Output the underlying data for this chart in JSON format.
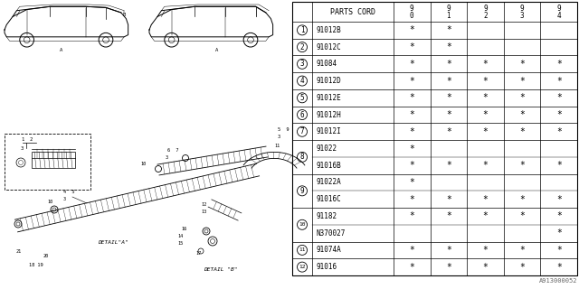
{
  "catalog_code": "A913000052",
  "bg_color": "#ffffff",
  "header_label": "PARTS CORD",
  "col_year_tops": [
    "9",
    "9",
    "9",
    "9",
    "9"
  ],
  "col_year_bots": [
    "0",
    "1",
    "2",
    "3",
    "4"
  ],
  "rows": [
    {
      "num": "1",
      "part": "91012B",
      "marks": [
        1,
        1,
        0,
        0,
        0
      ],
      "sub": false
    },
    {
      "num": "2",
      "part": "91012C",
      "marks": [
        1,
        1,
        0,
        0,
        0
      ],
      "sub": false
    },
    {
      "num": "3",
      "part": "91084",
      "marks": [
        1,
        1,
        1,
        1,
        1
      ],
      "sub": false
    },
    {
      "num": "4",
      "part": "91012D",
      "marks": [
        1,
        1,
        1,
        1,
        1
      ],
      "sub": false
    },
    {
      "num": "5",
      "part": "91012E",
      "marks": [
        1,
        1,
        1,
        1,
        1
      ],
      "sub": false
    },
    {
      "num": "6",
      "part": "91012H",
      "marks": [
        1,
        1,
        1,
        1,
        1
      ],
      "sub": false
    },
    {
      "num": "7",
      "part": "91012I",
      "marks": [
        1,
        1,
        1,
        1,
        1
      ],
      "sub": false
    },
    {
      "num": "8",
      "part": "91022",
      "marks": [
        1,
        0,
        0,
        0,
        0
      ],
      "sub": false
    },
    {
      "num": "8",
      "part": "91016B",
      "marks": [
        1,
        1,
        1,
        1,
        1
      ],
      "sub": true
    },
    {
      "num": "9",
      "part": "91022A",
      "marks": [
        1,
        0,
        0,
        0,
        0
      ],
      "sub": false
    },
    {
      "num": "9",
      "part": "91016C",
      "marks": [
        1,
        1,
        1,
        1,
        1
      ],
      "sub": true
    },
    {
      "num": "10",
      "part": "91182",
      "marks": [
        1,
        1,
        1,
        1,
        1
      ],
      "sub": false
    },
    {
      "num": "10",
      "part": "N370027",
      "marks": [
        0,
        0,
        0,
        0,
        1
      ],
      "sub": true
    },
    {
      "num": "11",
      "part": "91074A",
      "marks": [
        1,
        1,
        1,
        1,
        1
      ],
      "sub": false
    },
    {
      "num": "12",
      "part": "91016",
      "marks": [
        1,
        1,
        1,
        1,
        1
      ],
      "sub": false
    }
  ],
  "line_color": "#000000",
  "lw_outer": 0.8,
  "lw_inner": 0.5,
  "lw_sub": 0.3
}
